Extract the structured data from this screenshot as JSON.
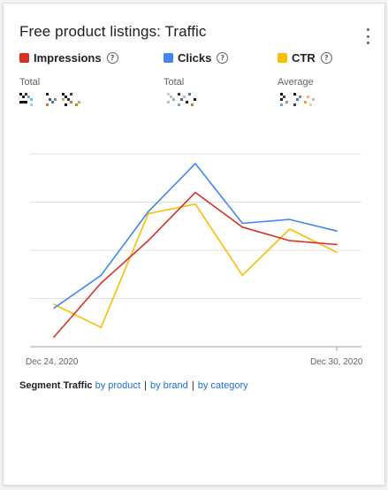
{
  "card": {
    "title": "Free product listings: Traffic"
  },
  "metrics": [
    {
      "name": "Impressions",
      "color": "#d93025",
      "summary_label": "Total",
      "value_visible": false
    },
    {
      "name": "Clicks",
      "color": "#4285f4",
      "summary_label": "Total",
      "value_visible": false
    },
    {
      "name": "CTR",
      "color": "#fbbc04",
      "summary_label": "Average",
      "value_visible": false
    }
  ],
  "help_icon": "help-circle-icon",
  "menu_icon": "more-vert-icon",
  "x_axis": {
    "start_label": "Dec 24, 2020",
    "end_label": "Dec 30, 2020"
  },
  "segment": {
    "title": "Segment Traffic",
    "links": [
      "by product",
      "by brand",
      "by category"
    ],
    "separator": "|"
  },
  "chart_data": {
    "type": "line",
    "x": [
      "Dec 24, 2020",
      "Dec 25, 2020",
      "Dec 26, 2020",
      "Dec 27, 2020",
      "Dec 28, 2020",
      "Dec 29, 2020",
      "Dec 30, 2020"
    ],
    "xlabel": "",
    "ylabel": "",
    "grid": true,
    "y_axis_labels_visible": false,
    "ylim": [
      0,
      100
    ],
    "series": [
      {
        "name": "Impressions",
        "color": "#d93025",
        "values": [
          5,
          33,
          55,
          80,
          62,
          55,
          53
        ]
      },
      {
        "name": "Clicks",
        "color": "#4285f4",
        "values": [
          20,
          37,
          70,
          95,
          64,
          66,
          60
        ]
      },
      {
        "name": "CTR",
        "color": "#fbbc04",
        "values": [
          22,
          10,
          69,
          74,
          37,
          61,
          49
        ]
      }
    ]
  }
}
